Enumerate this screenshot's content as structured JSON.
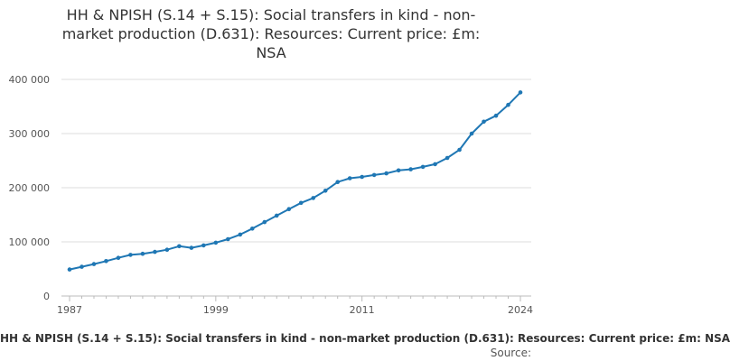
{
  "chart_data": {
    "type": "line",
    "title": "HH & NPISH (S.14 + S.15): Social transfers in kind - non-\nmarket production (D.631): Resources: Current price: £m:\nNSA",
    "xlabel": "HH & NPISH (S.14 + S.15): Social transfers in kind - non-market production (D.631): Resources: Current price: £m: NSA",
    "ylabel": "",
    "source_label": "Source:",
    "x_tick_labels": [
      "1987",
      "1999",
      "2011",
      "2024"
    ],
    "x_ticks": [
      1987,
      1999,
      2011,
      2024
    ],
    "y_tick_labels": [
      "0",
      "100 000",
      "200 000",
      "300 000",
      "400 000"
    ],
    "y_ticks": [
      0,
      100000,
      200000,
      300000,
      400000
    ],
    "xlim": [
      1987,
      2024
    ],
    "ylim": [
      0,
      400000
    ],
    "grid": "horizontal",
    "legend": "none",
    "series": [
      {
        "color": "#1f77b4",
        "x": [
          1987,
          1988,
          1989,
          1990,
          1991,
          1992,
          1993,
          1994,
          1995,
          1996,
          1997,
          1998,
          1999,
          2000,
          2001,
          2002,
          2003,
          2004,
          2005,
          2006,
          2007,
          2008,
          2009,
          2010,
          2011,
          2012,
          2013,
          2014,
          2015,
          2016,
          2017,
          2018,
          2019,
          2020,
          2021,
          2022,
          2023,
          2024
        ],
        "values": [
          49000,
          54000,
          59000,
          64500,
          70500,
          76000,
          78000,
          81500,
          85500,
          92000,
          89000,
          93500,
          98500,
          105000,
          113500,
          124500,
          136500,
          148500,
          160500,
          172000,
          181000,
          194500,
          210500,
          217500,
          220000,
          223500,
          226500,
          232000,
          234000,
          238500,
          243500,
          255000,
          270000,
          300000,
          322000,
          333000,
          353000,
          376000
        ]
      }
    ]
  }
}
